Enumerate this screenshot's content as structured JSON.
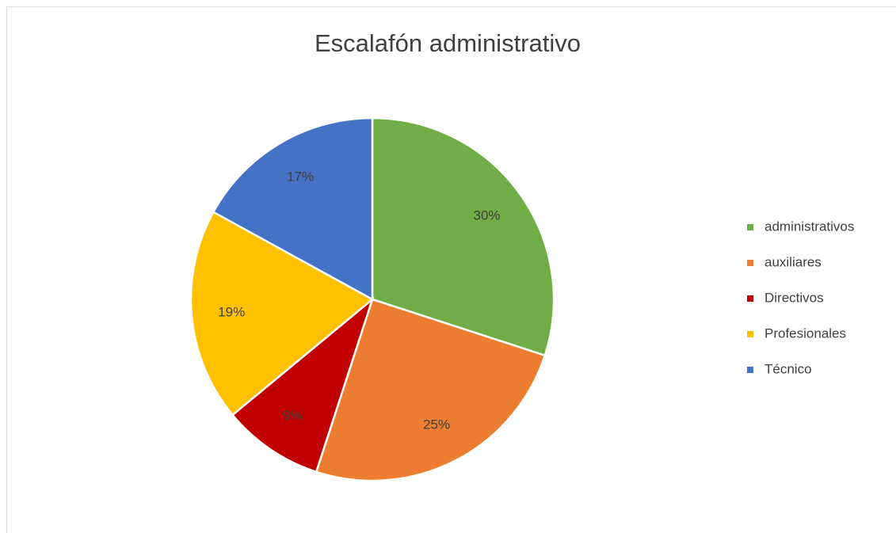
{
  "chart_data": {
    "type": "pie",
    "title": "Escalafón administrativo",
    "categories": [
      "administrativos",
      "auxiliares",
      "Directivos",
      "Profesionales",
      "Técnico"
    ],
    "values": [
      30,
      25,
      9,
      19,
      17
    ],
    "value_labels": [
      "30%",
      "25%",
      "9%",
      "19%",
      "17%"
    ],
    "colors": [
      "#70ad47",
      "#ed7d31",
      "#c00000",
      "#ffc000",
      "#4472c4"
    ],
    "legend": "right"
  }
}
